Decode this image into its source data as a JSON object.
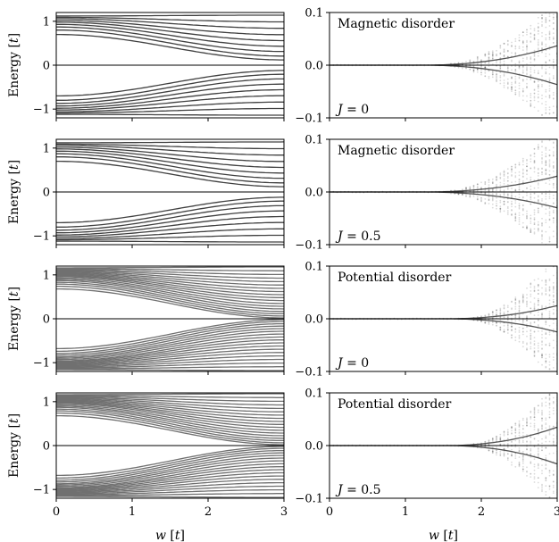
{
  "figure": {
    "ylabel_left": "Energy [t]",
    "xlabel": "w [t]"
  },
  "chart_data": [
    {
      "type": "line",
      "row": 1,
      "column": "left",
      "ylabel": "Energy [t]",
      "xlim": [
        0,
        3
      ],
      "ylim": [
        -1.2,
        1.2
      ],
      "xticks": [
        "0",
        "1",
        "2",
        "3"
      ],
      "yticks": [
        "-1",
        "0",
        "1"
      ],
      "levels": 9,
      "edge_values": [
        0.7,
        0.8,
        0.87,
        0.93,
        0.98,
        1.02,
        1.06,
        1.09,
        1.12
      ],
      "gap_min_at_x3": 0.12,
      "curve_color": "#404040"
    },
    {
      "type": "scatter",
      "row": 1,
      "column": "right",
      "annotation": "Magnetic disorder",
      "J_label": "J = 0",
      "xlim": [
        0,
        3
      ],
      "ylim": [
        -0.1,
        0.1
      ],
      "xticks": [
        "0",
        "1",
        "2",
        "3"
      ],
      "yticks": [
        "-0.1",
        "0.0",
        "0.1"
      ],
      "lowest_level_y_at_x3": 0.037,
      "scatter_onset_x": 1.6
    },
    {
      "type": "line",
      "row": 2,
      "column": "left",
      "ylabel": "Energy [t]",
      "xlim": [
        0,
        3
      ],
      "ylim": [
        -1.2,
        1.2
      ],
      "xticks": [
        "0",
        "1",
        "2",
        "3"
      ],
      "yticks": [
        "-1",
        "0",
        "1"
      ],
      "levels": 9,
      "edge_values": [
        0.7,
        0.8,
        0.87,
        0.93,
        0.98,
        1.02,
        1.06,
        1.09,
        1.12
      ],
      "gap_min_at_x3": 0.12,
      "curve_color": "#404040"
    },
    {
      "type": "scatter",
      "row": 2,
      "column": "right",
      "annotation": "Magnetic disorder",
      "J_label": "J = 0.5",
      "xlim": [
        0,
        3
      ],
      "ylim": [
        -0.1,
        0.1
      ],
      "xticks": [
        "0",
        "1",
        "2",
        "3"
      ],
      "yticks": [
        "-0.1",
        "0.0",
        "0.1"
      ],
      "lowest_level_y_at_x3": 0.03,
      "scatter_onset_x": 1.6
    },
    {
      "type": "line",
      "row": 3,
      "column": "left",
      "ylabel": "Energy [t]",
      "xlim": [
        0,
        3
      ],
      "ylim": [
        -1.2,
        1.2
      ],
      "xticks": [
        "0",
        "1",
        "2",
        "3"
      ],
      "yticks": [
        "-1",
        "0",
        "1"
      ],
      "levels": 18,
      "edge_values": [
        0.68,
        0.74,
        0.79,
        0.83,
        0.87,
        0.9,
        0.93,
        0.96,
        0.98,
        1.0,
        1.02,
        1.04,
        1.06,
        1.08,
        1.1,
        1.12,
        1.14,
        1.16
      ],
      "gap_min_at_x3": 0.02,
      "curve_color": "#707070"
    },
    {
      "type": "scatter",
      "row": 3,
      "column": "right",
      "annotation": "Potential disorder",
      "J_label": "J = 0",
      "xlim": [
        0,
        3
      ],
      "ylim": [
        -0.1,
        0.1
      ],
      "xticks": [
        "0",
        "1",
        "2",
        "3"
      ],
      "yticks": [
        "-0.1",
        "0.0",
        "0.1"
      ],
      "lowest_level_y_at_x3": 0.025,
      "scatter_onset_x": 1.9
    },
    {
      "type": "line",
      "row": 4,
      "column": "left",
      "ylabel": "Energy [t]",
      "xlim": [
        0,
        3
      ],
      "ylim": [
        -1.2,
        1.2
      ],
      "xticks": [
        "0",
        "1",
        "2",
        "3"
      ],
      "yticks": [
        "-1",
        "0",
        "1"
      ],
      "levels": 18,
      "edge_values": [
        0.68,
        0.74,
        0.79,
        0.83,
        0.87,
        0.9,
        0.93,
        0.96,
        0.98,
        1.0,
        1.02,
        1.04,
        1.06,
        1.08,
        1.1,
        1.12,
        1.14,
        1.16
      ],
      "gap_min_at_x3": 0.02,
      "curve_color": "#707070"
    },
    {
      "type": "scatter",
      "row": 4,
      "column": "right",
      "annotation": "Potential disorder",
      "J_label": "J = 0.5",
      "xlim": [
        0,
        3
      ],
      "ylim": [
        -0.1,
        0.1
      ],
      "xticks": [
        "0",
        "1",
        "2",
        "3"
      ],
      "yticks": [
        "-0.1",
        "0.0",
        "0.1"
      ],
      "lowest_level_y_at_x3": 0.035,
      "scatter_onset_x": 1.9
    }
  ]
}
